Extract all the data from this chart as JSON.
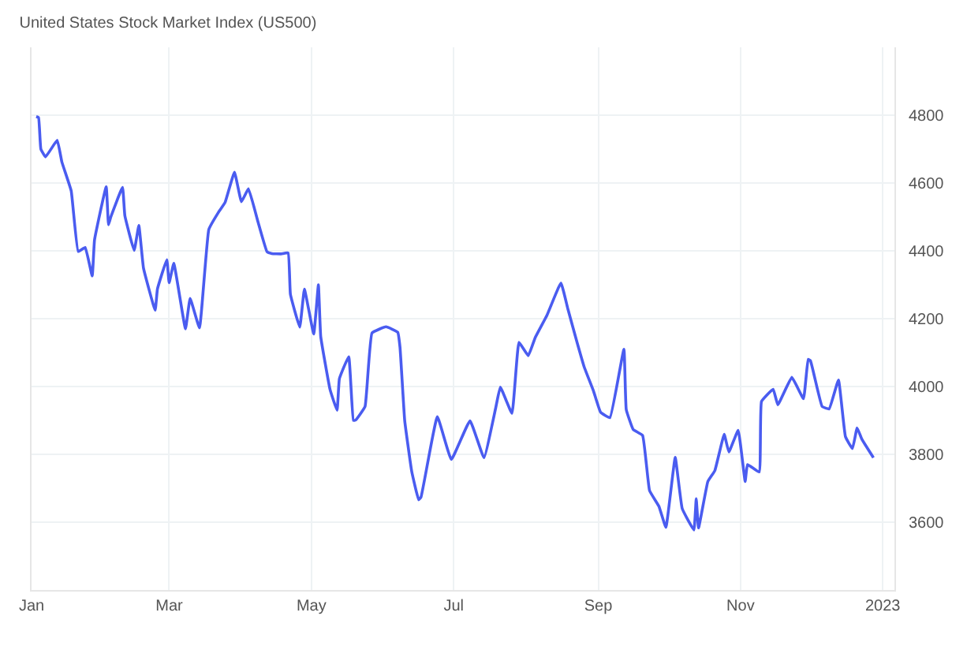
{
  "chart_data": {
    "type": "line",
    "title": "United States Stock Market Index (US500)",
    "x": [
      "2022-01-03",
      "2022-01-04",
      "2022-01-05",
      "2022-01-07",
      "2022-01-12",
      "2022-01-14",
      "2022-01-18",
      "2022-01-21",
      "2022-01-24",
      "2022-01-27",
      "2022-01-28",
      "2022-02-02",
      "2022-02-03",
      "2022-02-04",
      "2022-02-09",
      "2022-02-10",
      "2022-02-14",
      "2022-02-16",
      "2022-02-18",
      "2022-02-23",
      "2022-02-24",
      "2022-02-28",
      "2022-03-01",
      "2022-03-03",
      "2022-03-08",
      "2022-03-10",
      "2022-03-14",
      "2022-03-18",
      "2022-03-22",
      "2022-03-25",
      "2022-03-29",
      "2022-04-01",
      "2022-04-04",
      "2022-04-08",
      "2022-04-12",
      "2022-04-14",
      "2022-04-18",
      "2022-04-21",
      "2022-04-22",
      "2022-04-26",
      "2022-04-28",
      "2022-05-02",
      "2022-05-04",
      "2022-05-05",
      "2022-05-09",
      "2022-05-12",
      "2022-05-13",
      "2022-05-17",
      "2022-05-19",
      "2022-05-20",
      "2022-05-24",
      "2022-05-27",
      "2022-06-02",
      "2022-06-07",
      "2022-06-08",
      "2022-06-10",
      "2022-06-13",
      "2022-06-16",
      "2022-06-17",
      "2022-06-24",
      "2022-06-30",
      "2022-07-08",
      "2022-07-14",
      "2022-07-19",
      "2022-07-21",
      "2022-07-26",
      "2022-07-29",
      "2022-08-02",
      "2022-08-05",
      "2022-08-10",
      "2022-08-16",
      "2022-08-19",
      "2022-08-23",
      "2022-08-26",
      "2022-08-30",
      "2022-09-02",
      "2022-09-06",
      "2022-09-12",
      "2022-09-13",
      "2022-09-16",
      "2022-09-20",
      "2022-09-23",
      "2022-09-27",
      "2022-09-30",
      "2022-10-04",
      "2022-10-07",
      "2022-10-12",
      "2022-10-13",
      "2022-10-14",
      "2022-10-18",
      "2022-10-21",
      "2022-10-25",
      "2022-10-27",
      "2022-10-31",
      "2022-11-03",
      "2022-11-04",
      "2022-11-09",
      "2022-11-10",
      "2022-11-15",
      "2022-11-17",
      "2022-11-23",
      "2022-11-28",
      "2022-11-30",
      "2022-12-01",
      "2022-12-06",
      "2022-12-09",
      "2022-12-13",
      "2022-12-16",
      "2022-12-19",
      "2022-12-21",
      "2022-12-23",
      "2022-12-28"
    ],
    "series": [
      {
        "color": "#4a5cf0",
        "values": [
          4796,
          4793,
          4700,
          4677,
          4726,
          4662,
          4577,
          4398,
          4410,
          4326,
          4432,
          4589,
          4477,
          4500,
          4587,
          4504,
          4401,
          4475,
          4349,
          4225,
          4288,
          4374,
          4306,
          4363,
          4170,
          4260,
          4173,
          4463,
          4512,
          4543,
          4632,
          4545,
          4583,
          4488,
          4397,
          4392,
          4391,
          4394,
          4272,
          4175,
          4287,
          4155,
          4300,
          4147,
          3991,
          3930,
          4023,
          4088,
          3900,
          3901,
          3941,
          4158,
          4176,
          4160,
          4115,
          3900,
          3750,
          3666,
          3674,
          3911,
          3785,
          3899,
          3790,
          3936,
          3998,
          3921,
          4130,
          4091,
          4145,
          4210,
          4305,
          4228,
          4128,
          4057,
          3986,
          3924,
          3908,
          4110,
          3932,
          3873,
          3856,
          3693,
          3647,
          3585,
          3791,
          3640,
          3577,
          3669,
          3583,
          3720,
          3752,
          3859,
          3807,
          3871,
          3720,
          3770,
          3748,
          3956,
          3992,
          3946,
          4027,
          3964,
          4080,
          4076,
          3941,
          3934,
          4019,
          3852,
          3817,
          3878,
          3845,
          3790
        ]
      }
    ],
    "xlim": [
      "2022-01-01",
      "2023-01-06"
    ],
    "xticks": [
      {
        "value": "2022-01-01",
        "label": "Jan"
      },
      {
        "value": "2022-03-01",
        "label": "Mar"
      },
      {
        "value": "2022-05-01",
        "label": "May"
      },
      {
        "value": "2022-07-01",
        "label": "Jul"
      },
      {
        "value": "2022-09-01",
        "label": "Sep"
      },
      {
        "value": "2022-11-01",
        "label": "Nov"
      },
      {
        "value": "2023-01-01",
        "label": "2023"
      }
    ],
    "ylim": [
      3400,
      5000
    ],
    "yticks": [
      3600,
      3800,
      4000,
      4200,
      4400,
      4600,
      4800
    ],
    "grid": true,
    "marker": "none",
    "line_style": "solid"
  }
}
